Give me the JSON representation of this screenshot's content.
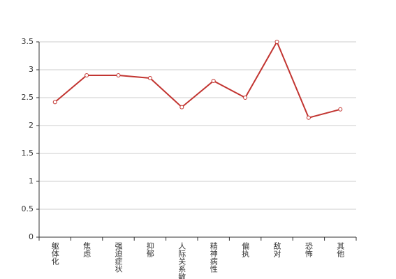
{
  "chart_data": {
    "type": "line",
    "categories": [
      "躯体化",
      "焦虑",
      "强迫症状",
      "抑郁",
      "人际关系敏感",
      "精神病性",
      "偏执",
      "敌对",
      "恐怖",
      "其他"
    ],
    "series": [
      {
        "color": "#c23531",
        "values": [
          2.42,
          2.9,
          2.9,
          2.85,
          2.33,
          2.8,
          2.5,
          3.5,
          2.14,
          2.29
        ]
      }
    ],
    "ylim": [
      0,
      3.5
    ],
    "yticks": [
      0,
      0.5,
      1,
      1.5,
      2,
      2.5,
      3,
      3.5
    ],
    "grid": true
  }
}
